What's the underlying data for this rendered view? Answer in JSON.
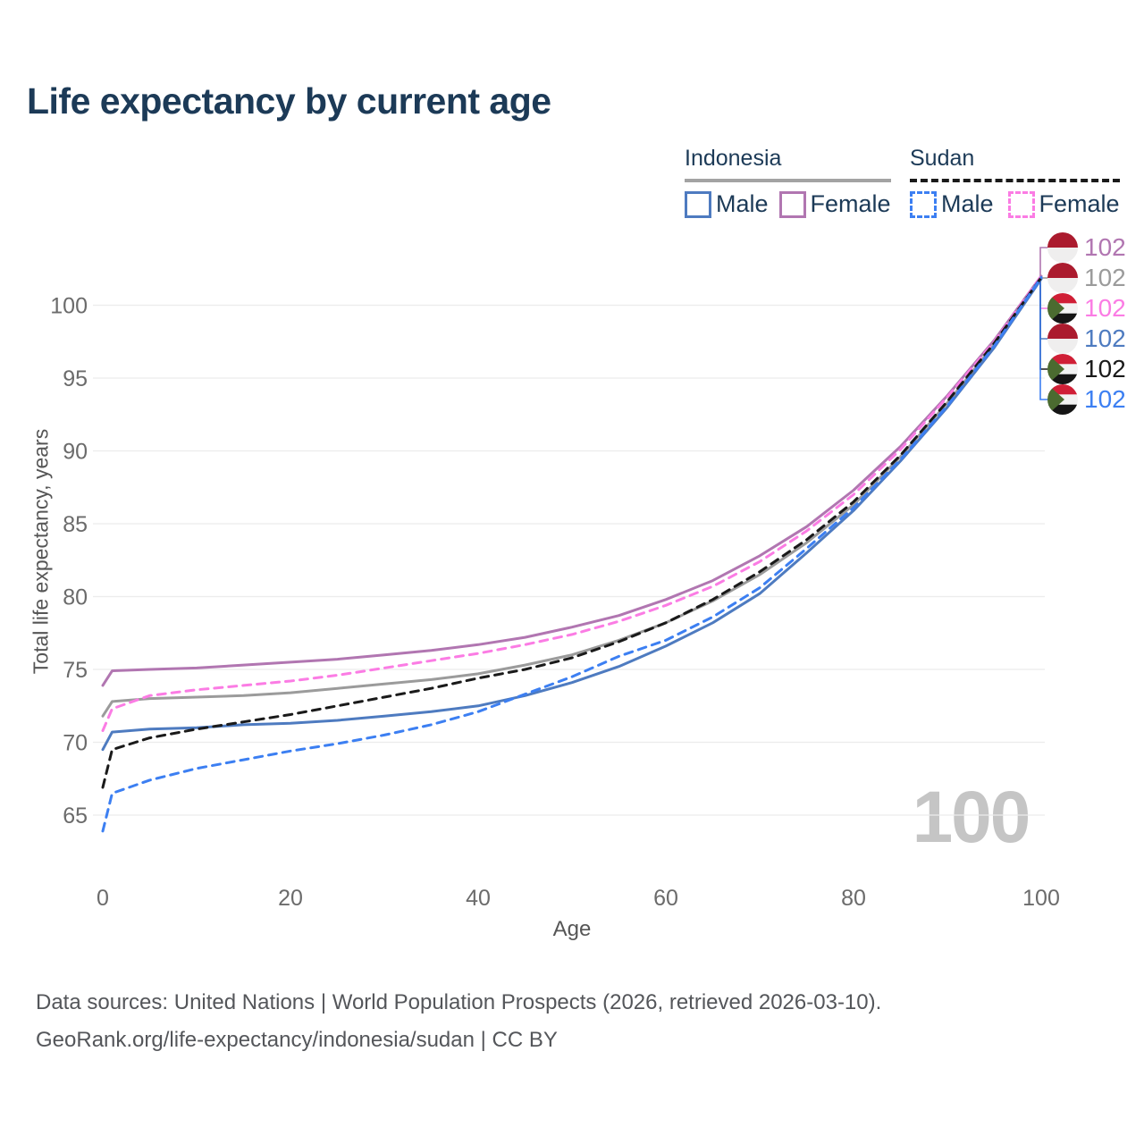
{
  "title": "Life expectancy by current age",
  "legend": {
    "groups": [
      {
        "label": "Indonesia",
        "underline_style": "solid",
        "underline_color": "#a3a3a3",
        "items": [
          {
            "label": "Male",
            "color": "#4e7bc0",
            "dashed": false
          },
          {
            "label": "Female",
            "color": "#b176b1",
            "dashed": false
          }
        ]
      },
      {
        "label": "Sudan",
        "underline_style": "dashed",
        "underline_color": "#1a1a1a",
        "items": [
          {
            "label": "Male",
            "color": "#3c7ff2",
            "dashed": true
          },
          {
            "label": "Female",
            "color": "#fb7ce4",
            "dashed": true
          }
        ]
      }
    ]
  },
  "chart_data": {
    "type": "line",
    "title": "Life expectancy by current age",
    "xlabel": "Age",
    "ylabel": "Total life expectancy, years",
    "x_ticks": [
      0,
      20,
      40,
      60,
      80,
      100
    ],
    "y_ticks": [
      65,
      70,
      75,
      80,
      85,
      90,
      95,
      100
    ],
    "xlim": [
      0,
      100
    ],
    "ylim": [
      63,
      103
    ],
    "grid": "horizontal",
    "legend_position": "top-right",
    "age_watermark": "100",
    "x": [
      0,
      1,
      5,
      10,
      15,
      20,
      25,
      30,
      35,
      40,
      45,
      50,
      55,
      60,
      65,
      70,
      75,
      80,
      85,
      90,
      95,
      100
    ],
    "series": [
      {
        "id": "indonesia-female",
        "country": "Indonesia",
        "sex": "Female",
        "color": "#b176b1",
        "dashed": false,
        "values": [
          73.9,
          74.9,
          75.0,
          75.1,
          75.3,
          75.5,
          75.7,
          76.0,
          76.3,
          76.7,
          77.2,
          77.9,
          78.7,
          79.8,
          81.1,
          82.8,
          84.8,
          87.3,
          90.3,
          93.8,
          97.6,
          102.0
        ]
      },
      {
        "id": "indonesia-all",
        "country": "Indonesia",
        "sex": "Both",
        "color": "#9b9b9b",
        "dashed": false,
        "values": [
          71.8,
          72.8,
          73.0,
          73.1,
          73.2,
          73.4,
          73.7,
          74.0,
          74.3,
          74.7,
          75.3,
          76.0,
          77.0,
          78.2,
          79.7,
          81.5,
          83.7,
          86.3,
          89.6,
          93.3,
          97.3,
          101.9
        ]
      },
      {
        "id": "indonesia-male",
        "country": "Indonesia",
        "sex": "Male",
        "color": "#4e7bc0",
        "dashed": false,
        "values": [
          69.5,
          70.7,
          70.9,
          71.0,
          71.2,
          71.3,
          71.5,
          71.8,
          72.1,
          72.5,
          73.2,
          74.1,
          75.2,
          76.6,
          78.2,
          80.2,
          83.0,
          85.9,
          89.3,
          93.0,
          97.1,
          101.8
        ]
      },
      {
        "id": "sudan-female",
        "country": "Sudan",
        "sex": "Female",
        "color": "#fb7ce4",
        "dashed": true,
        "values": [
          70.8,
          72.3,
          73.2,
          73.6,
          73.9,
          74.2,
          74.6,
          75.1,
          75.6,
          76.1,
          76.7,
          77.4,
          78.3,
          79.4,
          80.7,
          82.4,
          84.5,
          87.0,
          90.1,
          93.7,
          97.5,
          102.0
        ]
      },
      {
        "id": "sudan-all",
        "country": "Sudan",
        "sex": "Both",
        "color": "#1a1a1a",
        "dashed": true,
        "values": [
          66.9,
          69.5,
          70.3,
          70.9,
          71.4,
          71.9,
          72.5,
          73.1,
          73.7,
          74.4,
          75.0,
          75.8,
          76.9,
          78.2,
          79.8,
          81.7,
          83.9,
          86.5,
          89.7,
          93.4,
          97.4,
          101.9
        ]
      },
      {
        "id": "sudan-male",
        "country": "Sudan",
        "sex": "Male",
        "color": "#3c7ff2",
        "dashed": true,
        "values": [
          63.9,
          66.5,
          67.4,
          68.2,
          68.8,
          69.4,
          69.9,
          70.5,
          71.2,
          72.1,
          73.3,
          74.5,
          75.9,
          77.0,
          78.6,
          80.6,
          83.3,
          86.1,
          89.4,
          93.1,
          97.2,
          101.9
        ]
      }
    ]
  },
  "end_labels": [
    {
      "flag": "indonesia-flag-icon",
      "value": "102",
      "color": "#b176b1",
      "series": "indonesia-female"
    },
    {
      "flag": "indonesia-flag-icon",
      "value": "102",
      "color": "#9b9b9b",
      "series": "indonesia-all"
    },
    {
      "flag": "sudan-flag-icon",
      "value": "102",
      "color": "#fb7ce4",
      "series": "sudan-female"
    },
    {
      "flag": "indonesia-flag-icon",
      "value": "102",
      "color": "#4e7bc0",
      "series": "indonesia-male"
    },
    {
      "flag": "sudan-flag-icon",
      "value": "102",
      "color": "#1a1a1a",
      "series": "sudan-all"
    },
    {
      "flag": "sudan-flag-icon",
      "value": "102",
      "color": "#3c7ff2",
      "series": "sudan-male"
    }
  ],
  "footer": {
    "line1": "Data sources: United Nations | World Population Prospects (2026, retrieved 2026-03-10).",
    "line2": "GeoRank.org/life-expectancy/indonesia/sudan | CC BY"
  }
}
